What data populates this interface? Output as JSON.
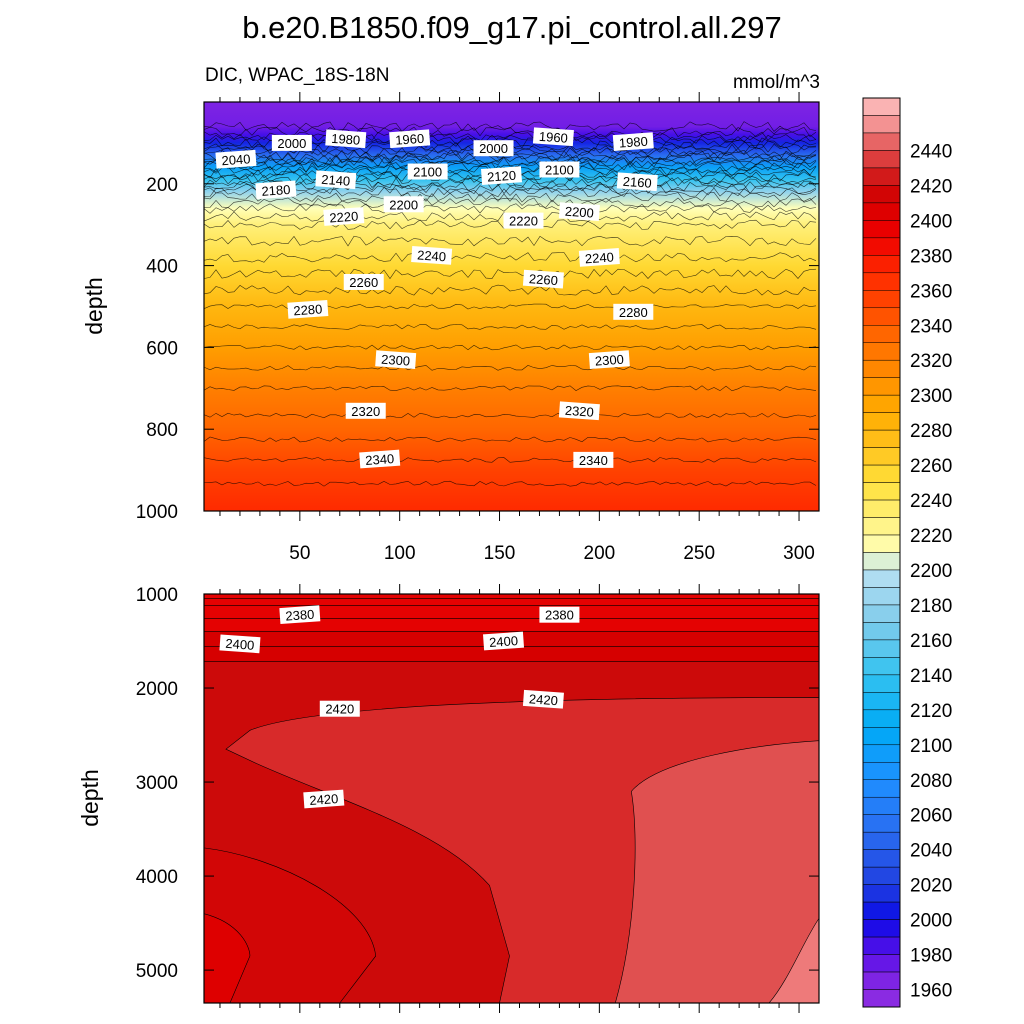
{
  "figure": {
    "title": "b.e20.B1850.f09_g17.pi_control.all.297",
    "subtitle_left": "DIC, WPAC_18S-18N",
    "subtitle_right": "mmol/m^3"
  },
  "chart_data": [
    {
      "type": "contour",
      "panel": "upper",
      "variable": "DIC",
      "units": "mmol/m^3",
      "ylabel": "depth",
      "xlabel": "",
      "xlim": [
        2,
        310
      ],
      "ylim": [
        1000,
        0
      ],
      "x_ticks": [
        50,
        100,
        150,
        200,
        250,
        300
      ],
      "y_ticks": [
        200,
        400,
        600,
        800,
        1000
      ],
      "contour_interval": 10,
      "contour_labels": [
        {
          "text": "2040",
          "x": 18,
          "y": 140
        },
        {
          "text": "2000",
          "x": 46,
          "y": 100
        },
        {
          "text": "1980",
          "x": 73,
          "y": 90
        },
        {
          "text": "1960",
          "x": 105,
          "y": 90
        },
        {
          "text": "2000",
          "x": 147,
          "y": 113
        },
        {
          "text": "1960",
          "x": 177,
          "y": 85
        },
        {
          "text": "1980",
          "x": 217,
          "y": 97
        },
        {
          "text": "2100",
          "x": 114,
          "y": 170
        },
        {
          "text": "2140",
          "x": 68,
          "y": 190
        },
        {
          "text": "2120",
          "x": 151,
          "y": 180
        },
        {
          "text": "2100",
          "x": 180,
          "y": 165
        },
        {
          "text": "2160",
          "x": 219,
          "y": 195
        },
        {
          "text": "2180",
          "x": 38,
          "y": 215
        },
        {
          "text": "2200",
          "x": 102,
          "y": 250
        },
        {
          "text": "2200",
          "x": 190,
          "y": 268
        },
        {
          "text": "2220",
          "x": 72,
          "y": 280
        },
        {
          "text": "2220",
          "x": 162,
          "y": 290
        },
        {
          "text": "2240",
          "x": 116,
          "y": 375
        },
        {
          "text": "2240",
          "x": 200,
          "y": 380
        },
        {
          "text": "2260",
          "x": 82,
          "y": 440
        },
        {
          "text": "2260",
          "x": 172,
          "y": 433
        },
        {
          "text": "2280",
          "x": 54,
          "y": 507
        },
        {
          "text": "2280",
          "x": 217,
          "y": 513
        },
        {
          "text": "2300",
          "x": 98,
          "y": 630
        },
        {
          "text": "2300",
          "x": 205,
          "y": 630
        },
        {
          "text": "2320",
          "x": 83,
          "y": 755
        },
        {
          "text": "2320",
          "x": 190,
          "y": 755
        },
        {
          "text": "2340",
          "x": 90,
          "y": 873
        },
        {
          "text": "2340",
          "x": 197,
          "y": 875
        }
      ],
      "depth_profile": [
        {
          "depth": 0,
          "value": 1955
        },
        {
          "depth": 60,
          "value": 1960
        },
        {
          "depth": 80,
          "value": 1975
        },
        {
          "depth": 100,
          "value": 2000
        },
        {
          "depth": 130,
          "value": 2040
        },
        {
          "depth": 160,
          "value": 2090
        },
        {
          "depth": 190,
          "value": 2130
        },
        {
          "depth": 220,
          "value": 2170
        },
        {
          "depth": 260,
          "value": 2200
        },
        {
          "depth": 300,
          "value": 2220
        },
        {
          "depth": 400,
          "value": 2245
        },
        {
          "depth": 500,
          "value": 2270
        },
        {
          "depth": 600,
          "value": 2290
        },
        {
          "depth": 700,
          "value": 2310
        },
        {
          "depth": 800,
          "value": 2325
        },
        {
          "depth": 900,
          "value": 2345
        },
        {
          "depth": 1000,
          "value": 2360
        }
      ]
    },
    {
      "type": "contour",
      "panel": "lower",
      "variable": "DIC",
      "units": "mmol/m^3",
      "ylabel": "depth",
      "xlabel": "",
      "xlim": [
        2,
        310
      ],
      "ylim": [
        5350,
        1000
      ],
      "y_ticks": [
        1000,
        2000,
        3000,
        4000,
        5000
      ],
      "contour_labels": [
        {
          "text": "2380",
          "x": 50,
          "y": 1220
        },
        {
          "text": "2380",
          "x": 180,
          "y": 1220
        },
        {
          "text": "2400",
          "x": 20,
          "y": 1530
        },
        {
          "text": "2400",
          "x": 152,
          "y": 1500
        },
        {
          "text": "2420",
          "x": 70,
          "y": 2220
        },
        {
          "text": "2420",
          "x": 172,
          "y": 2120
        },
        {
          "text": "2420",
          "x": 62,
          "y": 3180
        }
      ],
      "regions": [
        {
          "range": "2370-2380",
          "depth": [
            1000,
            1120
          ]
        },
        {
          "range": "2380-2390",
          "depth": [
            1120,
            1400
          ]
        },
        {
          "range": "2390-2400",
          "depth": [
            1400,
            1720
          ]
        },
        {
          "range": "2400-2410",
          "depth": [
            1720,
            5350
          ]
        },
        {
          "range": "2410-2420",
          "note": "lower-left core"
        },
        {
          "range": "2420-2430",
          "note": "tongue from x=15 eastward below 2100 m"
        },
        {
          "range": "2430-2440",
          "note": "eastern region x>215"
        },
        {
          "range": "2440-2450",
          "note": "far east x>300 near bottom"
        }
      ]
    }
  ],
  "colorbar": {
    "labels": [
      "2440",
      "2420",
      "2400",
      "2380",
      "2360",
      "2340",
      "2320",
      "2300",
      "2280",
      "2260",
      "2240",
      "2220",
      "2200",
      "2180",
      "2160",
      "2140",
      "2120",
      "2100",
      "2080",
      "2060",
      "2040",
      "2020",
      "2000",
      "1980",
      "1960"
    ],
    "levels_min": 1950,
    "levels_max": 2460,
    "interval": 10
  }
}
